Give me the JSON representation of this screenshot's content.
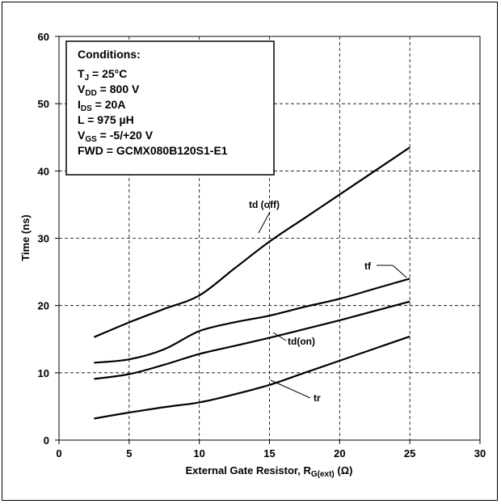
{
  "chart_data": {
    "type": "line",
    "xlabel_main": "External Gate Resistor, R",
    "xlabel_sub": "G(ext)",
    "xlabel_unit": " (Ω)",
    "ylabel": "Time (ns)",
    "xlim": [
      0,
      30
    ],
    "ylim": [
      0,
      60
    ],
    "xticks": [
      "0",
      "5",
      "10",
      "15",
      "20",
      "25",
      "30"
    ],
    "yticks": [
      "0",
      "10",
      "20",
      "30",
      "40",
      "50",
      "60"
    ],
    "grid": true,
    "series": [
      {
        "name": "td (off)",
        "x": [
          2.5,
          5,
          7.5,
          10,
          12.5,
          15,
          17.5,
          20,
          22.5,
          25
        ],
        "y": [
          15.3,
          17.5,
          19.5,
          21.5,
          25.5,
          29.5,
          33.0,
          36.5,
          40.0,
          43.5
        ]
      },
      {
        "name": "tf",
        "x": [
          2.5,
          5,
          7.5,
          10,
          12.5,
          15,
          17.5,
          20,
          22.5,
          25
        ],
        "y": [
          11.5,
          12.0,
          13.5,
          16.2,
          17.5,
          18.5,
          19.8,
          21.0,
          22.5,
          24.0
        ]
      },
      {
        "name": "td(on)",
        "x": [
          2.5,
          5,
          7.5,
          10,
          12.5,
          15,
          17.5,
          20,
          22.5,
          25
        ],
        "y": [
          9.1,
          9.8,
          11.2,
          12.8,
          14.0,
          15.2,
          16.5,
          17.8,
          19.2,
          20.6
        ]
      },
      {
        "name": "tr",
        "x": [
          2.5,
          5,
          7.5,
          10,
          12.5,
          15,
          17.5,
          20,
          22.5,
          25
        ],
        "y": [
          3.2,
          4.1,
          4.9,
          5.6,
          6.8,
          8.2,
          10.0,
          11.8,
          13.6,
          15.4
        ]
      }
    ]
  },
  "conditions": {
    "title": "Conditions:",
    "lines": [
      {
        "main": "T",
        "sub": "J",
        "rest": " = 25°C"
      },
      {
        "main": "V",
        "sub": "DD",
        "rest": " = 800 V"
      },
      {
        "main": "I",
        "sub": "DS",
        "rest": " = 20A"
      },
      {
        "main": "L = 975 µH",
        "sub": "",
        "rest": ""
      },
      {
        "main": "V",
        "sub": "GS",
        "rest": " = -5/+20 V"
      },
      {
        "main": "FWD = GCMX080B120S1-E1",
        "sub": "",
        "rest": ""
      }
    ]
  },
  "colors": {
    "line": "#000000",
    "grid": "#000000",
    "background": "#ffffff"
  }
}
